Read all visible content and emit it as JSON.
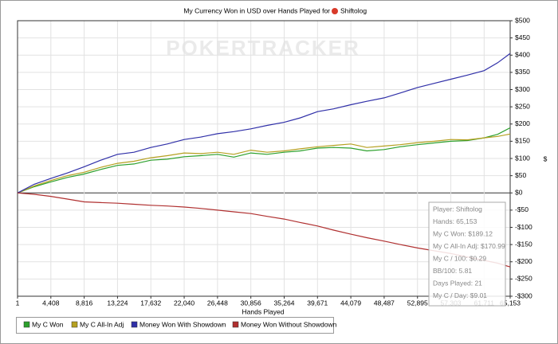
{
  "chart_data": {
    "type": "line",
    "title": "My Currency Won in USD over Hands Played for",
    "player": "Shiftolog",
    "watermark": "POKERTRACKER",
    "xlabel": "Hands Played",
    "ylabel": "$",
    "xlim": [
      1,
      65153
    ],
    "ylim": [
      -300,
      500
    ],
    "grid": true,
    "xticks": [
      1,
      {
        "value": 4408,
        "label": "4,408"
      },
      {
        "value": 8816,
        "label": "8,816"
      },
      {
        "value": 13224,
        "label": "13,224"
      },
      {
        "value": 17632,
        "label": "17,632"
      },
      {
        "value": 22040,
        "label": "22,040"
      },
      {
        "value": 26448,
        "label": "26,448"
      },
      {
        "value": 30856,
        "label": "30,856"
      },
      {
        "value": 35264,
        "label": "35,264"
      },
      {
        "value": 39671,
        "label": "39,671"
      },
      {
        "value": 44079,
        "label": "44,079"
      },
      {
        "value": 48487,
        "label": "48,487"
      },
      {
        "value": 52895,
        "label": "52,895"
      },
      {
        "value": 57303,
        "label": "57,303"
      },
      {
        "value": 61711,
        "label": "61,711"
      },
      {
        "value": 65153,
        "label": "65,153"
      }
    ],
    "yticks": [
      {
        "value": 500,
        "label": "$500"
      },
      {
        "value": 450,
        "label": "$450"
      },
      {
        "value": 400,
        "label": "$400"
      },
      {
        "value": 350,
        "label": "$350"
      },
      {
        "value": 300,
        "label": "$300"
      },
      {
        "value": 250,
        "label": "$250"
      },
      {
        "value": 200,
        "label": "$200"
      },
      {
        "value": 150,
        "label": "$150"
      },
      {
        "value": 100,
        "label": "$100"
      },
      {
        "value": 50,
        "label": "$50"
      },
      {
        "value": 0,
        "label": "$0"
      },
      {
        "value": -50,
        "label": "-$50"
      },
      {
        "value": -100,
        "label": "-$100"
      },
      {
        "value": -150,
        "label": "-$150"
      },
      {
        "value": -200,
        "label": "-$200"
      },
      {
        "value": -250,
        "label": "-$250"
      },
      {
        "value": -300,
        "label": "-$300"
      }
    ],
    "x": [
      1,
      2200,
      4408,
      6600,
      8816,
      11000,
      13224,
      15400,
      17632,
      19800,
      22040,
      24200,
      26448,
      28600,
      30856,
      33000,
      35264,
      37400,
      39671,
      41800,
      44079,
      46200,
      48487,
      50600,
      52895,
      55100,
      57303,
      59500,
      61711,
      63500,
      65153
    ],
    "series": [
      {
        "name": "My C Won",
        "color": "#2ca02c",
        "values": [
          0,
          18,
          32,
          45,
          55,
          68,
          80,
          84,
          95,
          98,
          105,
          108,
          112,
          104,
          116,
          112,
          118,
          122,
          130,
          132,
          130,
          122,
          126,
          134,
          140,
          145,
          150,
          152,
          160,
          170,
          189.12
        ]
      },
      {
        "name": "My C All-In Adj",
        "color": "#b5a020",
        "values": [
          0,
          20,
          36,
          50,
          60,
          74,
          86,
          92,
          102,
          108,
          116,
          114,
          118,
          112,
          124,
          118,
          122,
          128,
          134,
          138,
          142,
          132,
          136,
          140,
          146,
          150,
          155,
          154,
          160,
          164,
          170.99
        ]
      },
      {
        "name": "Money Won With Showdown",
        "color": "#3030a8",
        "values": [
          0,
          25,
          42,
          58,
          76,
          95,
          112,
          118,
          132,
          142,
          155,
          162,
          172,
          178,
          186,
          196,
          205,
          218,
          236,
          244,
          256,
          266,
          276,
          290,
          306,
          318,
          330,
          342,
          355,
          378,
          405
        ]
      },
      {
        "name": "Money Won Without Showdown",
        "color": "#b03030",
        "values": [
          0,
          -4,
          -10,
          -18,
          -26,
          -28,
          -30,
          -33,
          -36,
          -38,
          -41,
          -45,
          -50,
          -55,
          -60,
          -68,
          -76,
          -86,
          -96,
          -108,
          -120,
          -130,
          -140,
          -150,
          -160,
          -168,
          -176,
          -186,
          -196,
          -204,
          -215
        ]
      }
    ],
    "info_box": [
      "Player: Shiftolog",
      "Hands: 65,153",
      "My C Won: $189.12",
      "My C All-In Adj: $170.99",
      "My C / 100: $0.29",
      "BB/100: 5.81",
      "Days Played: 21",
      "My C / Day: $9.01"
    ]
  }
}
